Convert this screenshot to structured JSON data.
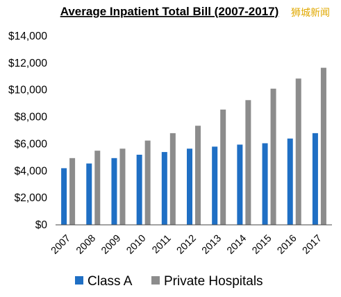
{
  "watermark": "狮城新闻",
  "colors": {
    "class_a": "#1f6fc4",
    "private": "#8c8c8c",
    "axis": "#444444"
  },
  "chart_data": {
    "type": "bar",
    "title": "Average Inpatient Total Bill (2007-2017)",
    "xlabel": "",
    "ylabel": "",
    "ylim": [
      0,
      14000
    ],
    "yticks": [
      "$0",
      "$2,000",
      "$4,000",
      "$6,000",
      "$8,000",
      "$10,000",
      "$12,000",
      "$14,000"
    ],
    "ytick_values": [
      0,
      2000,
      4000,
      6000,
      8000,
      10000,
      12000,
      14000
    ],
    "grid": false,
    "legend_position": "bottom",
    "categories": [
      "2007",
      "2008",
      "2009",
      "2010",
      "2011",
      "2012",
      "2013",
      "2014",
      "2015",
      "2016",
      "2017"
    ],
    "series": [
      {
        "name": "Class A",
        "values": [
          4200,
          4550,
          4950,
          5200,
          5400,
          5650,
          5800,
          5950,
          6050,
          6400,
          6800
        ]
      },
      {
        "name": "Private Hospitals",
        "values": [
          4950,
          5500,
          5650,
          6250,
          6800,
          7350,
          8550,
          9250,
          10100,
          10850,
          11650
        ]
      }
    ]
  }
}
